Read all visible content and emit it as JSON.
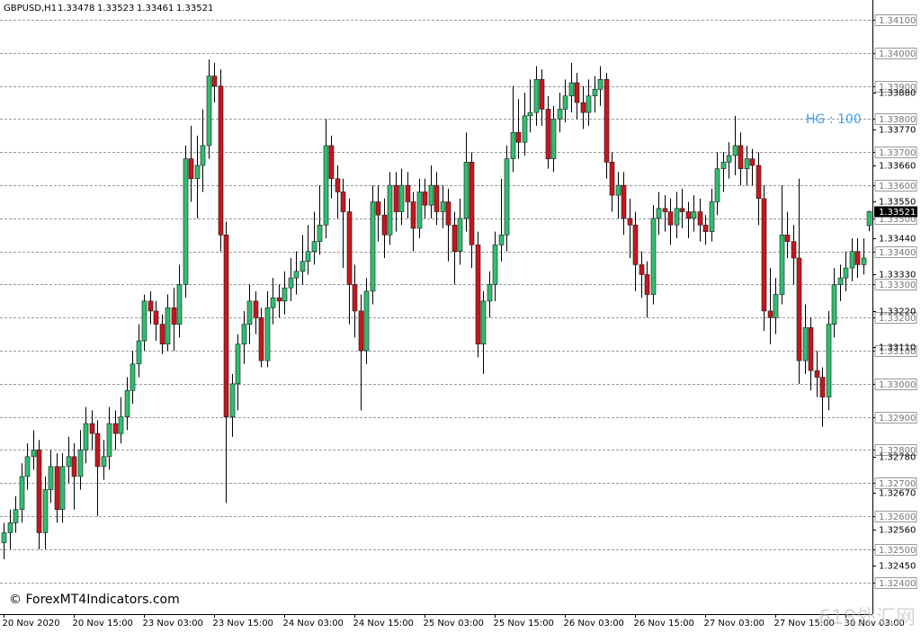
{
  "chart_data": {
    "type": "candlestick",
    "title": "GBPUSD,H1",
    "annotation": "HG : 100",
    "watermarks": [
      "© ForexMT4Indicators.com",
      "618外汇网"
    ],
    "up_color": "#2fbf71",
    "down_color": "#c8161d",
    "grid": true,
    "ylim": [
      1.32304,
      1.3416
    ],
    "yticks": [
      {
        "value": 1.341,
        "label": "1.34100"
      },
      {
        "value": 1.34,
        "label": "1.34000"
      },
      {
        "value": 1.339,
        "label": "1.33900"
      },
      {
        "value": 1.338,
        "label": "1.33800"
      },
      {
        "value": 1.337,
        "label": "1.33700"
      },
      {
        "value": 1.336,
        "label": "1.33600"
      },
      {
        "value": 1.335,
        "label": "1.33500"
      },
      {
        "value": 1.334,
        "label": "1.33400"
      },
      {
        "value": 1.333,
        "label": "1.33300"
      },
      {
        "value": 1.332,
        "label": "1.33200"
      },
      {
        "value": 1.331,
        "label": "1.33100"
      },
      {
        "value": 1.33,
        "label": "1.33000"
      },
      {
        "value": 1.329,
        "label": "1.32900"
      },
      {
        "value": 1.328,
        "label": "1.32800"
      },
      {
        "value": 1.327,
        "label": "1.32700"
      },
      {
        "value": 1.326,
        "label": "1.32600"
      },
      {
        "value": 1.325,
        "label": "1.32500"
      },
      {
        "value": 1.324,
        "label": "1.32400"
      }
    ],
    "y_labels": [
      {
        "value": 1.3388,
        "label": "1.33880"
      },
      {
        "value": 1.3377,
        "label": "1.33770"
      },
      {
        "value": 1.3366,
        "label": "1.33660"
      },
      {
        "value": 1.3355,
        "label": "1.33550"
      },
      {
        "value": 1.3344,
        "label": "1.33440"
      },
      {
        "value": 1.3333,
        "label": "1.33330"
      },
      {
        "value": 1.3322,
        "label": "1.33220"
      },
      {
        "value": 1.3311,
        "label": "1.33110"
      },
      {
        "value": 1.3278,
        "label": "1.32780"
      },
      {
        "value": 1.3267,
        "label": "1.32670"
      },
      {
        "value": 1.3256,
        "label": "1.32560"
      },
      {
        "value": 1.3245,
        "label": "1.32450"
      }
    ],
    "current_price": 1.33521,
    "categories": [
      "20 Nov 2020",
      null,
      null,
      null,
      null,
      null,
      null,
      null,
      null,
      null,
      null,
      null,
      "20 Nov 15:00",
      null,
      null,
      null,
      null,
      null,
      null,
      null,
      null,
      null,
      null,
      null,
      "23 Nov 03:00",
      null,
      null,
      null,
      null,
      null,
      null,
      null,
      null,
      null,
      null,
      null,
      "23 Nov 15:00",
      null,
      null,
      null,
      null,
      null,
      null,
      null,
      null,
      null,
      null,
      null,
      "24 Nov 03:00",
      null,
      null,
      null,
      null,
      null,
      null,
      null,
      null,
      null,
      null,
      null,
      "24 Nov 15:00",
      null,
      null,
      null,
      null,
      null,
      null,
      null,
      null,
      null,
      null,
      null,
      "25 Nov 03:00",
      null,
      null,
      null,
      null,
      null,
      null,
      null,
      null,
      null,
      null,
      null,
      "25 Nov 15:00",
      null,
      null,
      null,
      null,
      null,
      null,
      null,
      null,
      null,
      null,
      null,
      "26 Nov 03:00",
      null,
      null,
      null,
      null,
      null,
      null,
      null,
      null,
      null,
      null,
      null,
      "26 Nov 15:00",
      null,
      null,
      null,
      null,
      null,
      null,
      null,
      null,
      null,
      null,
      null,
      "27 Nov 03:00",
      null,
      null,
      null,
      null,
      null,
      null,
      null,
      null,
      null,
      null,
      null,
      "27 Nov 15:00",
      null,
      null,
      null,
      null,
      null,
      null,
      null,
      null,
      null,
      null,
      null,
      "30 Nov 03:00",
      null,
      null,
      null,
      null
    ],
    "candles": [
      [
        1.3252,
        1.3258,
        1.3247,
        1.3255
      ],
      [
        1.3255,
        1.3262,
        1.325,
        1.3258
      ],
      [
        1.3258,
        1.3266,
        1.3255,
        1.3262
      ],
      [
        1.3262,
        1.3276,
        1.3258,
        1.3272
      ],
      [
        1.3272,
        1.3282,
        1.3268,
        1.3278
      ],
      [
        1.3278,
        1.3286,
        1.3274,
        1.328
      ],
      [
        1.328,
        1.3283,
        1.325,
        1.3255
      ],
      [
        1.3255,
        1.3272,
        1.325,
        1.3268
      ],
      [
        1.3268,
        1.328,
        1.3264,
        1.3275
      ],
      [
        1.3275,
        1.3279,
        1.3258,
        1.3262
      ],
      [
        1.3262,
        1.3279,
        1.3258,
        1.3275
      ],
      [
        1.3275,
        1.3284,
        1.327,
        1.3278
      ],
      [
        1.3278,
        1.3282,
        1.3262,
        1.3272
      ],
      [
        1.3272,
        1.3286,
        1.3268,
        1.328
      ],
      [
        1.328,
        1.3293,
        1.3276,
        1.3288
      ],
      [
        1.3288,
        1.3292,
        1.328,
        1.3285
      ],
      [
        1.3285,
        1.3289,
        1.326,
        1.3275
      ],
      [
        1.3275,
        1.3283,
        1.3271,
        1.3278
      ],
      [
        1.3278,
        1.3293,
        1.3274,
        1.3288
      ],
      [
        1.3288,
        1.3292,
        1.328,
        1.3285
      ],
      [
        1.3285,
        1.3296,
        1.3282,
        1.329
      ],
      [
        1.329,
        1.3302,
        1.3286,
        1.3298
      ],
      [
        1.3298,
        1.331,
        1.3294,
        1.3306
      ],
      [
        1.3306,
        1.3318,
        1.3302,
        1.3313
      ],
      [
        1.3313,
        1.3327,
        1.331,
        1.3325
      ],
      [
        1.3325,
        1.3328,
        1.3318,
        1.3322
      ],
      [
        1.3322,
        1.3325,
        1.3313,
        1.3318
      ],
      [
        1.3318,
        1.3321,
        1.3309,
        1.3312
      ],
      [
        1.3312,
        1.3327,
        1.331,
        1.3323
      ],
      [
        1.3323,
        1.3329,
        1.331,
        1.3318
      ],
      [
        1.3318,
        1.3336,
        1.3314,
        1.333
      ],
      [
        1.333,
        1.3372,
        1.3326,
        1.3368
      ],
      [
        1.3368,
        1.3378,
        1.3355,
        1.3362
      ],
      [
        1.3362,
        1.3375,
        1.335,
        1.3366
      ],
      [
        1.3366,
        1.3383,
        1.3358,
        1.3372
      ],
      [
        1.3372,
        1.3398,
        1.3368,
        1.3393
      ],
      [
        1.3393,
        1.3397,
        1.3385,
        1.339
      ],
      [
        1.339,
        1.3395,
        1.334,
        1.3345
      ],
      [
        1.3345,
        1.3349,
        1.3264,
        1.329
      ],
      [
        1.329,
        1.3303,
        1.3284,
        1.33
      ],
      [
        1.33,
        1.3315,
        1.3292,
        1.3312
      ],
      [
        1.3312,
        1.3322,
        1.3306,
        1.3318
      ],
      [
        1.3318,
        1.333,
        1.3312,
        1.3325
      ],
      [
        1.3325,
        1.3328,
        1.3315,
        1.332
      ],
      [
        1.332,
        1.3323,
        1.3305,
        1.3307
      ],
      [
        1.3307,
        1.3328,
        1.3305,
        1.3323
      ],
      [
        1.3323,
        1.3332,
        1.3318,
        1.3326
      ],
      [
        1.3326,
        1.333,
        1.332,
        1.3325
      ],
      [
        1.3325,
        1.3334,
        1.3321,
        1.3329
      ],
      [
        1.3329,
        1.3338,
        1.3325,
        1.3332
      ],
      [
        1.3332,
        1.334,
        1.3327,
        1.3334
      ],
      [
        1.3334,
        1.3345,
        1.333,
        1.3337
      ],
      [
        1.3337,
        1.3348,
        1.3333,
        1.334
      ],
      [
        1.334,
        1.3352,
        1.3336,
        1.3343
      ],
      [
        1.3343,
        1.336,
        1.3339,
        1.3348
      ],
      [
        1.3348,
        1.338,
        1.3344,
        1.3372
      ],
      [
        1.3372,
        1.3375,
        1.3356,
        1.3362
      ],
      [
        1.3362,
        1.3366,
        1.335,
        1.3358
      ],
      [
        1.3358,
        1.3362,
        1.3335,
        1.3352
      ],
      [
        1.3352,
        1.3356,
        1.3318,
        1.333
      ],
      [
        1.333,
        1.3336,
        1.3314,
        1.3322
      ],
      [
        1.3322,
        1.3327,
        1.3292,
        1.331
      ],
      [
        1.331,
        1.3332,
        1.3306,
        1.3328
      ],
      [
        1.3328,
        1.336,
        1.3324,
        1.3355
      ],
      [
        1.3355,
        1.336,
        1.3343,
        1.3351
      ],
      [
        1.3351,
        1.3356,
        1.3338,
        1.3345
      ],
      [
        1.3345,
        1.3364,
        1.3342,
        1.336
      ],
      [
        1.336,
        1.3364,
        1.3346,
        1.3352
      ],
      [
        1.3352,
        1.3365,
        1.3348,
        1.336
      ],
      [
        1.336,
        1.3364,
        1.335,
        1.3355
      ],
      [
        1.3355,
        1.3358,
        1.334,
        1.3347
      ],
      [
        1.3347,
        1.3362,
        1.3344,
        1.3358
      ],
      [
        1.3358,
        1.3362,
        1.335,
        1.3354
      ],
      [
        1.3354,
        1.3366,
        1.335,
        1.336
      ],
      [
        1.336,
        1.3364,
        1.3348,
        1.3352
      ],
      [
        1.3352,
        1.336,
        1.3347,
        1.3355
      ],
      [
        1.3355,
        1.3359,
        1.3337,
        1.3348
      ],
      [
        1.3348,
        1.3352,
        1.333,
        1.334
      ],
      [
        1.334,
        1.3356,
        1.3336,
        1.335
      ],
      [
        1.335,
        1.3376,
        1.3346,
        1.3367
      ],
      [
        1.3367,
        1.337,
        1.3335,
        1.3342
      ],
      [
        1.3342,
        1.3346,
        1.3308,
        1.3312
      ],
      [
        1.3312,
        1.3328,
        1.3303,
        1.3325
      ],
      [
        1.3325,
        1.3334,
        1.332,
        1.333
      ],
      [
        1.333,
        1.3346,
        1.3325,
        1.3342
      ],
      [
        1.3342,
        1.3362,
        1.3337,
        1.3345
      ],
      [
        1.3345,
        1.3372,
        1.334,
        1.3368
      ],
      [
        1.3368,
        1.339,
        1.3364,
        1.3376
      ],
      [
        1.3376,
        1.3386,
        1.3368,
        1.3373
      ],
      [
        1.3373,
        1.3388,
        1.3369,
        1.3381
      ],
      [
        1.3381,
        1.3392,
        1.3376,
        1.3382
      ],
      [
        1.3382,
        1.3396,
        1.3378,
        1.3392
      ],
      [
        1.3392,
        1.3395,
        1.3378,
        1.3383
      ],
      [
        1.3383,
        1.3387,
        1.3365,
        1.3368
      ],
      [
        1.3368,
        1.3384,
        1.3364,
        1.338
      ],
      [
        1.338,
        1.3388,
        1.3376,
        1.3383
      ],
      [
        1.3383,
        1.3392,
        1.3379,
        1.3387
      ],
      [
        1.3387,
        1.3397,
        1.3382,
        1.3391
      ],
      [
        1.3391,
        1.3394,
        1.338,
        1.3385
      ],
      [
        1.3385,
        1.339,
        1.3377,
        1.3382
      ],
      [
        1.3382,
        1.3392,
        1.3378,
        1.3387
      ],
      [
        1.3387,
        1.3393,
        1.3382,
        1.3389
      ],
      [
        1.3389,
        1.3396,
        1.3384,
        1.3392
      ],
      [
        1.3392,
        1.3394,
        1.3362,
        1.3367
      ],
      [
        1.3367,
        1.337,
        1.3352,
        1.3357
      ],
      [
        1.3357,
        1.3364,
        1.335,
        1.336
      ],
      [
        1.336,
        1.3364,
        1.3345,
        1.335
      ],
      [
        1.335,
        1.3356,
        1.3338,
        1.3348
      ],
      [
        1.3348,
        1.3352,
        1.3328,
        1.3336
      ],
      [
        1.3336,
        1.334,
        1.3326,
        1.3333
      ],
      [
        1.3333,
        1.3337,
        1.332,
        1.3327
      ],
      [
        1.3327,
        1.3354,
        1.3324,
        1.335
      ],
      [
        1.335,
        1.3358,
        1.3345,
        1.3353
      ],
      [
        1.3353,
        1.3357,
        1.3346,
        1.3352
      ],
      [
        1.3352,
        1.3356,
        1.3342,
        1.3348
      ],
      [
        1.3348,
        1.3358,
        1.3344,
        1.3353
      ],
      [
        1.3353,
        1.3359,
        1.3347,
        1.3352
      ],
      [
        1.3352,
        1.3355,
        1.3344,
        1.335
      ],
      [
        1.335,
        1.3357,
        1.3346,
        1.3352
      ],
      [
        1.3352,
        1.3356,
        1.3343,
        1.3348
      ],
      [
        1.3348,
        1.3351,
        1.3342,
        1.3346
      ],
      [
        1.3346,
        1.3359,
        1.3343,
        1.3355
      ],
      [
        1.3355,
        1.337,
        1.3351,
        1.3365
      ],
      [
        1.3365,
        1.337,
        1.3358,
        1.3367
      ],
      [
        1.3367,
        1.3373,
        1.3362,
        1.3369
      ],
      [
        1.3369,
        1.3381,
        1.3363,
        1.3372
      ],
      [
        1.3372,
        1.3376,
        1.336,
        1.3365
      ],
      [
        1.3365,
        1.3372,
        1.336,
        1.3368
      ],
      [
        1.3368,
        1.3371,
        1.336,
        1.3366
      ],
      [
        1.3366,
        1.337,
        1.3348,
        1.3356
      ],
      [
        1.3356,
        1.336,
        1.3316,
        1.3322
      ],
      [
        1.3322,
        1.3335,
        1.3312,
        1.332
      ],
      [
        1.332,
        1.3332,
        1.3315,
        1.3327
      ],
      [
        1.3327,
        1.336,
        1.3324,
        1.3345
      ],
      [
        1.3345,
        1.3352,
        1.3338,
        1.3343
      ],
      [
        1.3343,
        1.3348,
        1.333,
        1.3338
      ],
      [
        1.3338,
        1.3362,
        1.33,
        1.3307
      ],
      [
        1.3307,
        1.3324,
        1.3303,
        1.3317
      ],
      [
        1.3317,
        1.332,
        1.3298,
        1.3304
      ],
      [
        1.3304,
        1.331,
        1.3296,
        1.3302
      ],
      [
        1.3302,
        1.3305,
        1.3287,
        1.3296
      ],
      [
        1.3296,
        1.3322,
        1.3292,
        1.3318
      ],
      [
        1.3318,
        1.3335,
        1.3314,
        1.333
      ],
      [
        1.333,
        1.3336,
        1.3325,
        1.3332
      ],
      [
        1.3332,
        1.334,
        1.3328,
        1.3335
      ],
      [
        1.3335,
        1.3344,
        1.3331,
        1.334
      ],
      [
        1.334,
        1.3344,
        1.3332,
        1.3336
      ],
      [
        1.3336,
        1.3344,
        1.3333,
        1.3338
      ],
      [
        1.33478,
        1.33523,
        1.33461,
        1.33521
      ]
    ]
  }
}
